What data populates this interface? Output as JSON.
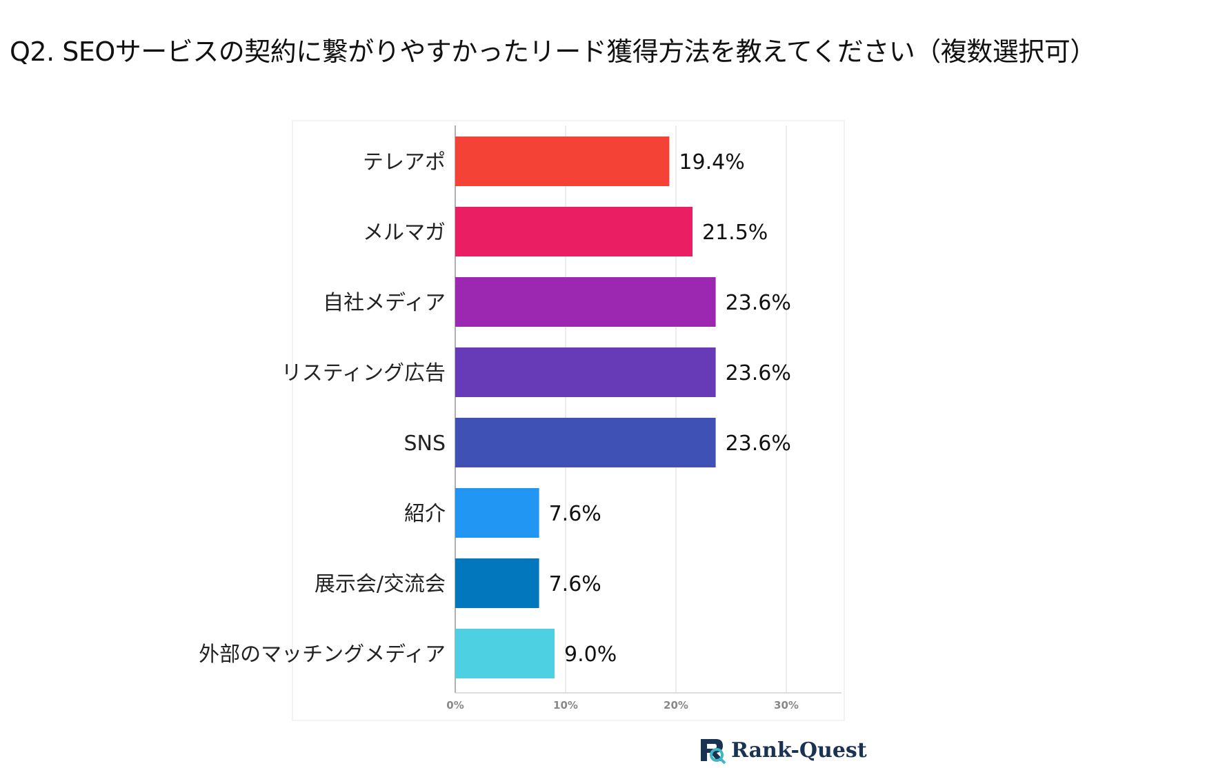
{
  "chart_data": {
    "type": "bar",
    "orientation": "horizontal",
    "title": "Q2. SEOサービスの契約に繋がりやすかったリード獲得方法を教えてください（複数選択可）",
    "categories": [
      "テレアポ",
      "メルマガ",
      "自社メディア",
      "リスティング広告",
      "SNS",
      "紹介",
      "展示会/交流会",
      "外部のマッチングメディア"
    ],
    "values": [
      19.4,
      21.5,
      23.6,
      23.6,
      23.6,
      7.6,
      7.6,
      9.0
    ],
    "value_labels": [
      "19.4%",
      "21.5%",
      "23.6%",
      "23.6%",
      "23.6%",
      "7.6%",
      "7.6%",
      "9.0%"
    ],
    "colors": [
      "#f44336",
      "#e91e63",
      "#9c27b0",
      "#673ab7",
      "#3f51b5",
      "#2196f3",
      "#0277bd",
      "#4dd0e1"
    ],
    "xlim": [
      0,
      35
    ],
    "xticks": [
      0,
      10,
      20,
      30
    ],
    "xtick_labels": [
      "0%",
      "10%",
      "20%",
      "30%"
    ],
    "xlabel": "",
    "ylabel": "",
    "grid": true,
    "legend": "none"
  },
  "brand": {
    "name": "Rank-Quest",
    "icon": "rank-quest-logo-icon",
    "color": "#1b3352",
    "accent": "#3fb6c6"
  }
}
